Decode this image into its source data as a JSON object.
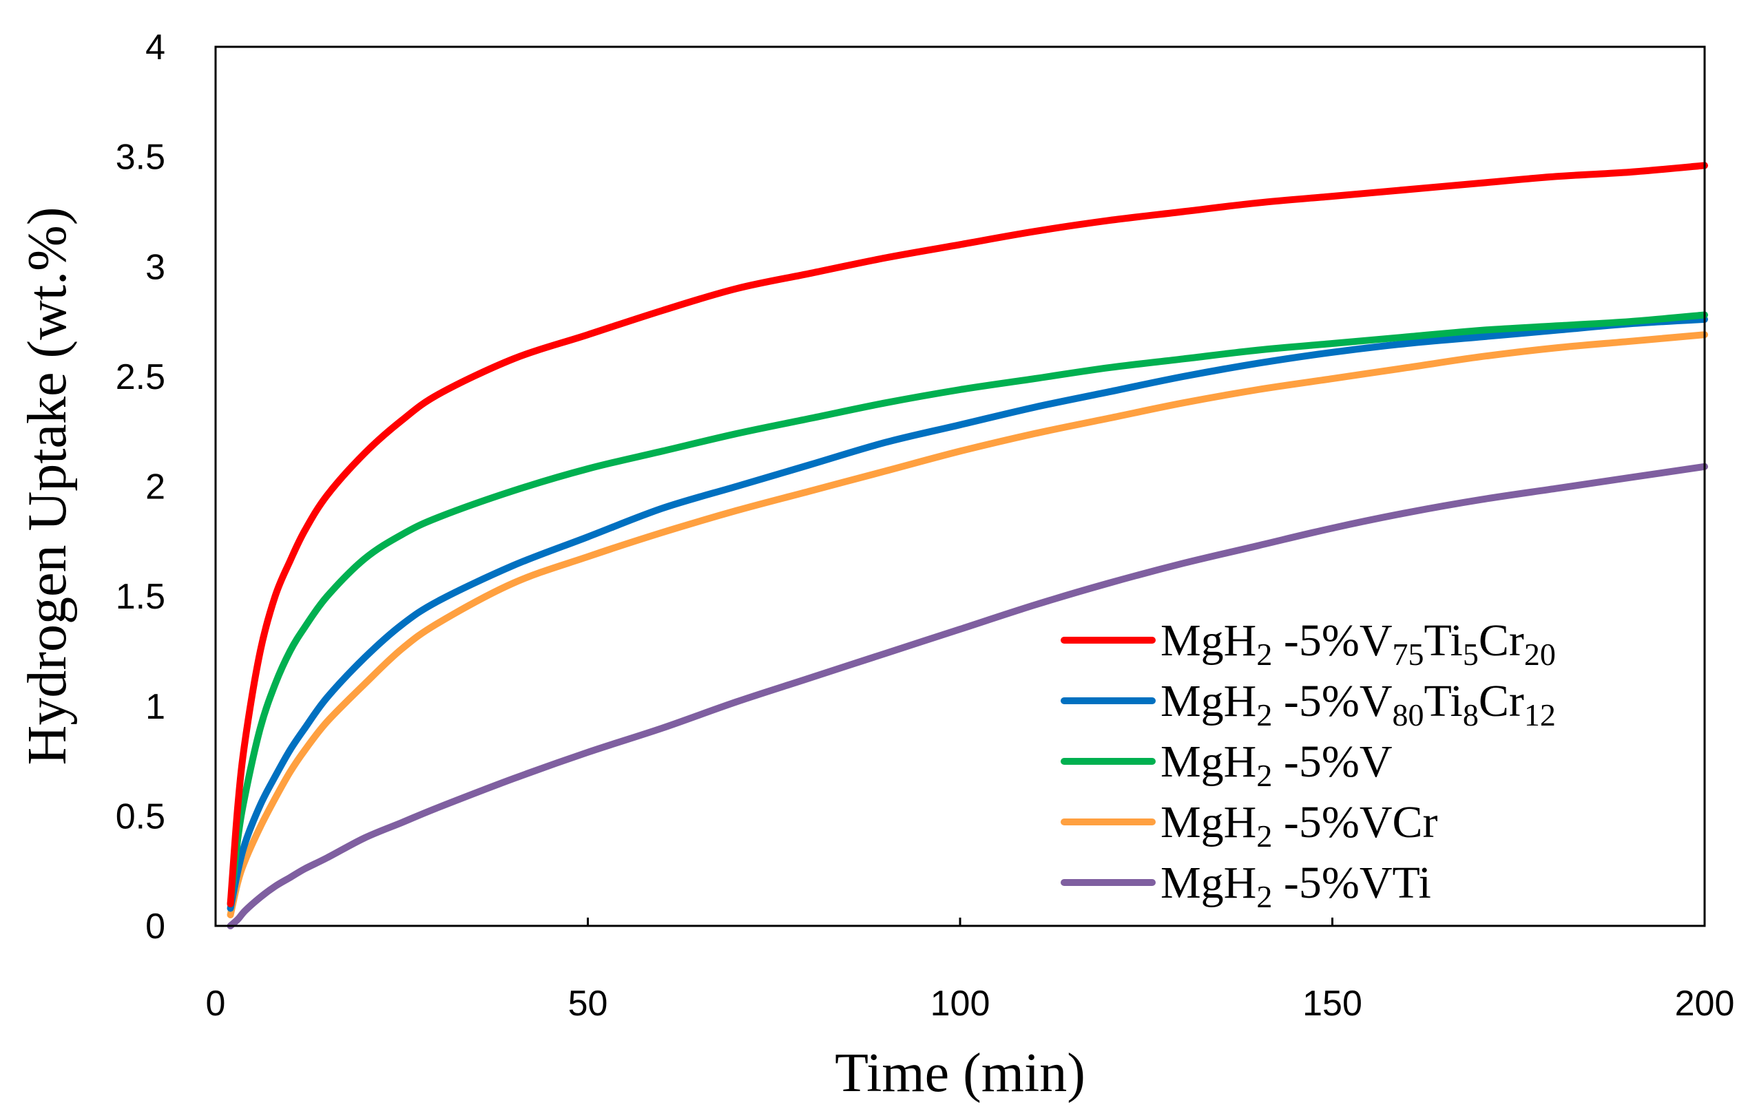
{
  "chart_data": {
    "type": "line",
    "title": "",
    "xlabel": "Time (min)",
    "ylabel": "Hydrogen Uptake (wt.%)",
    "xlim": [
      0,
      200
    ],
    "ylim": [
      0,
      4
    ],
    "xticks": [
      0,
      50,
      100,
      150,
      200
    ],
    "xtick_labels": [
      "0",
      "50",
      "100",
      "150",
      "200"
    ],
    "yticks": [
      0,
      0.5,
      1,
      1.5,
      2,
      2.5,
      3,
      3.5,
      4
    ],
    "ytick_labels": [
      "0",
      "0.5",
      "1",
      "1.5",
      "2",
      "2.5",
      "3",
      "3.5",
      "4"
    ],
    "grid": false,
    "legend_position": "bottom-right",
    "x": [
      2,
      3,
      4,
      6,
      8,
      10,
      12,
      15,
      20,
      25,
      30,
      40,
      50,
      60,
      70,
      80,
      90,
      100,
      110,
      120,
      130,
      140,
      150,
      160,
      170,
      180,
      190,
      200
    ],
    "series": [
      {
        "name": "MgH2 -5%V75Ti5Cr20",
        "label_parts": [
          {
            "t": "MgH",
            "sub": false
          },
          {
            "t": "2",
            "sub": true
          },
          {
            "t": " -5%V",
            "sub": false
          },
          {
            "t": "75",
            "sub": true
          },
          {
            "t": "Ti",
            "sub": false
          },
          {
            "t": "5",
            "sub": true
          },
          {
            "t": "Cr",
            "sub": false
          },
          {
            "t": "20",
            "sub": true
          }
        ],
        "color": "#ff0000",
        "values": [
          0.1,
          0.55,
          0.85,
          1.25,
          1.5,
          1.66,
          1.8,
          1.96,
          2.15,
          2.3,
          2.42,
          2.58,
          2.69,
          2.8,
          2.9,
          2.97,
          3.04,
          3.1,
          3.16,
          3.21,
          3.25,
          3.29,
          3.32,
          3.35,
          3.38,
          3.41,
          3.43,
          3.46
        ]
      },
      {
        "name": "MgH2 -5%V80Ti8Cr12",
        "label_parts": [
          {
            "t": "MgH",
            "sub": false
          },
          {
            "t": "2",
            "sub": true
          },
          {
            "t": " -5%V",
            "sub": false
          },
          {
            "t": "80",
            "sub": true
          },
          {
            "t": "Ti",
            "sub": false
          },
          {
            "t": "8",
            "sub": true
          },
          {
            "t": "Cr",
            "sub": false
          },
          {
            "t": "12",
            "sub": true
          }
        ],
        "color": "#0070c0",
        "values": [
          0.08,
          0.25,
          0.38,
          0.55,
          0.68,
          0.8,
          0.9,
          1.04,
          1.22,
          1.37,
          1.48,
          1.64,
          1.77,
          1.9,
          2.0,
          2.1,
          2.2,
          2.28,
          2.36,
          2.43,
          2.5,
          2.56,
          2.61,
          2.65,
          2.68,
          2.71,
          2.74,
          2.76
        ]
      },
      {
        "name": "MgH2 -5%V",
        "label_parts": [
          {
            "t": "MgH",
            "sub": false
          },
          {
            "t": "2",
            "sub": true
          },
          {
            "t": " -5%V",
            "sub": false
          }
        ],
        "color": "#00b050",
        "values": [
          0.1,
          0.4,
          0.6,
          0.9,
          1.1,
          1.25,
          1.36,
          1.5,
          1.67,
          1.78,
          1.86,
          1.98,
          2.08,
          2.16,
          2.24,
          2.31,
          2.38,
          2.44,
          2.49,
          2.54,
          2.58,
          2.62,
          2.65,
          2.68,
          2.71,
          2.73,
          2.75,
          2.78
        ]
      },
      {
        "name": "MgH2 -5%VCr",
        "label_parts": [
          {
            "t": "MgH",
            "sub": false
          },
          {
            "t": "2",
            "sub": true
          },
          {
            "t": " -5%VCr",
            "sub": false
          }
        ],
        "color": "#ffa040",
        "values": [
          0.05,
          0.2,
          0.3,
          0.45,
          0.58,
          0.7,
          0.8,
          0.93,
          1.1,
          1.26,
          1.38,
          1.56,
          1.68,
          1.79,
          1.89,
          1.98,
          2.07,
          2.16,
          2.24,
          2.31,
          2.38,
          2.44,
          2.49,
          2.54,
          2.59,
          2.63,
          2.66,
          2.69
        ]
      },
      {
        "name": "MgH2 -5%VTi",
        "label_parts": [
          {
            "t": "MgH",
            "sub": false
          },
          {
            "t": "2",
            "sub": true
          },
          {
            "t": " -5%VTi",
            "sub": false
          }
        ],
        "color": "#7f5fa0",
        "values": [
          0.0,
          0.03,
          0.07,
          0.13,
          0.18,
          0.22,
          0.26,
          0.31,
          0.4,
          0.47,
          0.54,
          0.67,
          0.79,
          0.9,
          1.02,
          1.13,
          1.24,
          1.35,
          1.46,
          1.56,
          1.65,
          1.73,
          1.81,
          1.88,
          1.94,
          1.99,
          2.04,
          2.09
        ]
      }
    ]
  }
}
